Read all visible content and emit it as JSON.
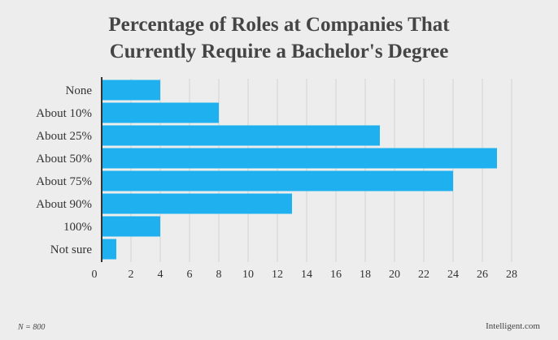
{
  "chart_data": {
    "type": "bar",
    "orientation": "horizontal",
    "title_lines": [
      "Percentage of Roles at Companies That",
      "Currently Require a Bachelor's Degree"
    ],
    "categories": [
      "None",
      "About 10%",
      "About 25%",
      "About 50%",
      "About 75%",
      "About 90%",
      "100%",
      "Not sure"
    ],
    "values": [
      4,
      8,
      19,
      27,
      24,
      13,
      4,
      1
    ],
    "xlim": [
      0,
      28
    ],
    "xticks": [
      0,
      2,
      4,
      6,
      8,
      10,
      12,
      14,
      16,
      18,
      20,
      22,
      24,
      26,
      28
    ],
    "grid": true,
    "bar_color": "#1fb0ef"
  },
  "footer": {
    "note": "N = 800",
    "source": "Intelligent.com"
  }
}
